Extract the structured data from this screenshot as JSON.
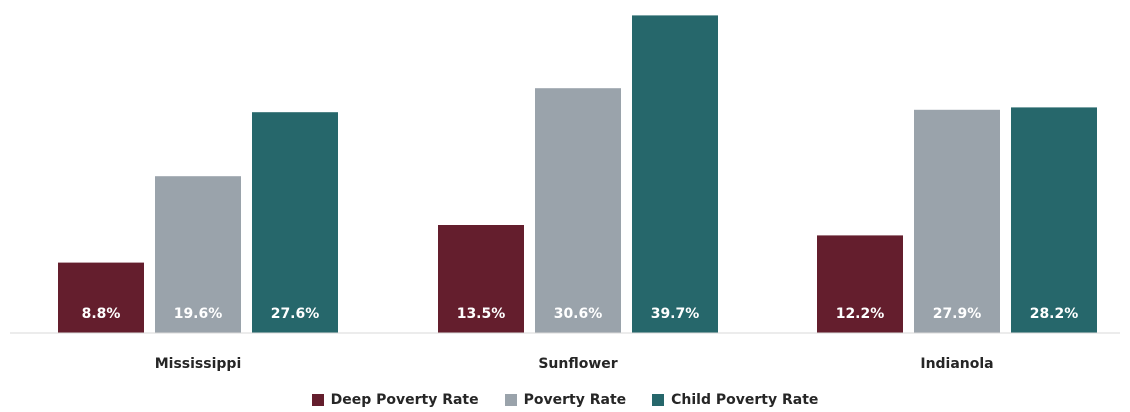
{
  "chart_data": {
    "type": "bar",
    "categories": [
      "Mississippi",
      "Sunflower",
      "Indianola"
    ],
    "series": [
      {
        "name": "Deep Poverty Rate",
        "color": "#641e2d",
        "values": [
          8.8,
          13.5,
          12.2
        ],
        "labels": [
          "8.8%",
          "13.5%",
          "12.2%"
        ]
      },
      {
        "name": "Poverty Rate",
        "color": "#9aa3ab",
        "values": [
          19.6,
          30.6,
          27.9
        ],
        "labels": [
          "19.6%",
          "30.6%",
          "27.9%"
        ]
      },
      {
        "name": "Child Poverty Rate",
        "color": "#26676b",
        "values": [
          27.6,
          39.7,
          28.2
        ],
        "labels": [
          "27.6%",
          "39.7%",
          "28.2%"
        ]
      }
    ],
    "ylim": [
      0,
      40
    ],
    "grid": false,
    "legend_position": "bottom"
  }
}
